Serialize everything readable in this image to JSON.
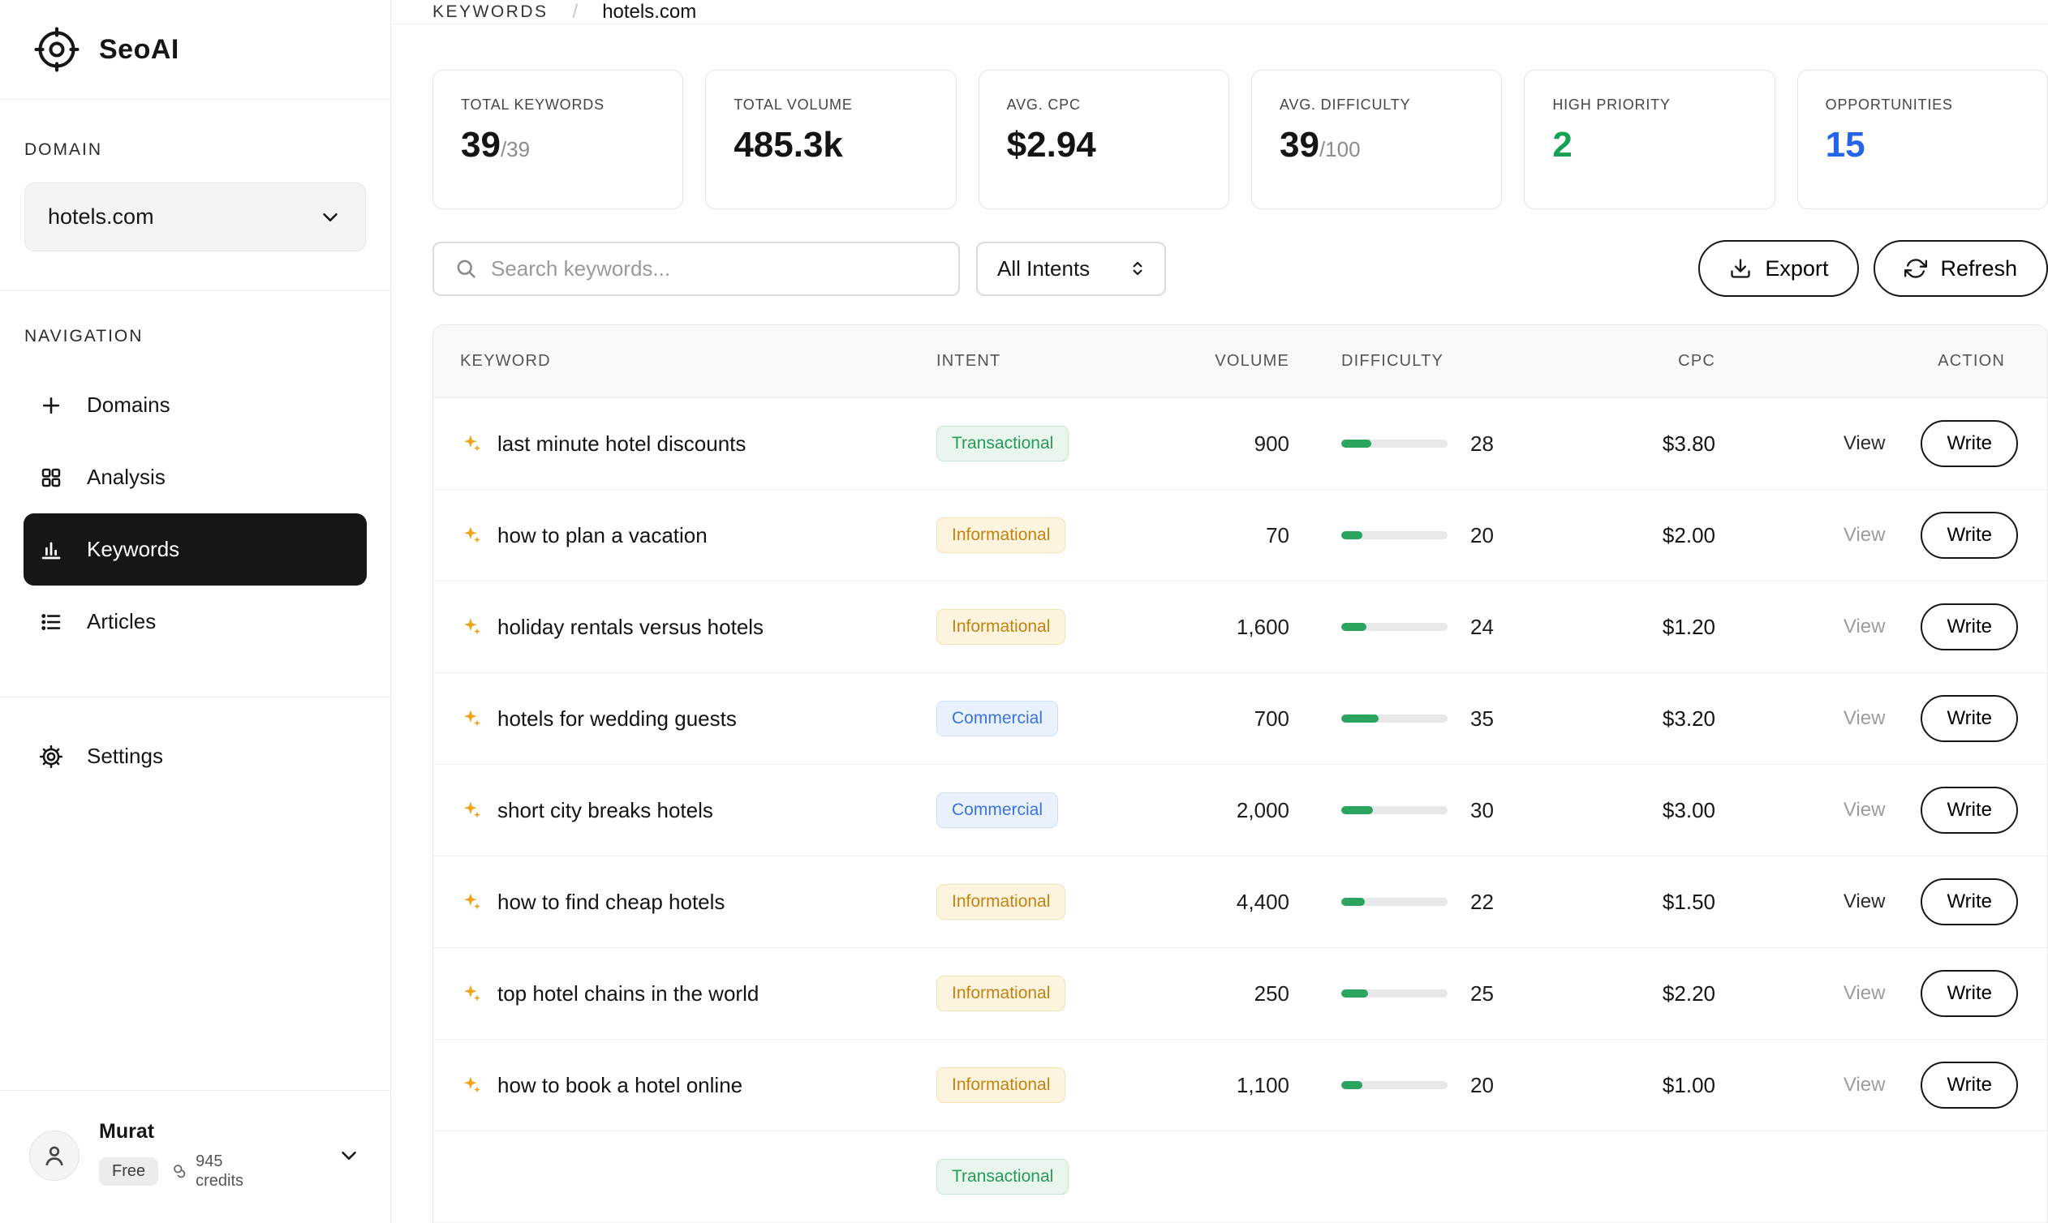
{
  "brand": {
    "name": "SeoAI"
  },
  "sidebar": {
    "domain_label": "DOMAIN",
    "domain_value": "hotels.com",
    "navigation_label": "NAVIGATION",
    "nav_items": [
      {
        "label": "Domains",
        "icon": "plus-icon",
        "active": false
      },
      {
        "label": "Analysis",
        "icon": "grid-icon",
        "active": false
      },
      {
        "label": "Keywords",
        "icon": "bar-chart-icon",
        "active": true
      },
      {
        "label": "Articles",
        "icon": "list-icon",
        "active": false
      }
    ],
    "settings_label": "Settings",
    "user": {
      "name": "Murat",
      "plan": "Free",
      "credits": "945 credits"
    }
  },
  "breadcrumb": {
    "section": "KEYWORDS",
    "separator": "/",
    "page": "hotels.com"
  },
  "stats": [
    {
      "label": "TOTAL KEYWORDS",
      "value": "39",
      "suffix": "/39"
    },
    {
      "label": "TOTAL VOLUME",
      "value": "485.3k"
    },
    {
      "label": "AVG. CPC",
      "value": "$2.94"
    },
    {
      "label": "AVG. DIFFICULTY",
      "value": "39",
      "suffix": "/100"
    },
    {
      "label": "HIGH PRIORITY",
      "value": "2",
      "color": "#15a254"
    },
    {
      "label": "OPPORTUNITIES",
      "value": "15",
      "color": "#2563eb"
    }
  ],
  "controls": {
    "search_placeholder": "Search keywords...",
    "intent_filter": "All Intents",
    "export_label": "Export",
    "refresh_label": "Refresh"
  },
  "table": {
    "headers": [
      "KEYWORD",
      "INTENT",
      "VOLUME",
      "DIFFICULTY",
      "CPC",
      "ACTION"
    ],
    "view_label": "View",
    "write_label": "Write",
    "intent_colors": {
      "Transactional": {
        "bg": "#e8f6ed",
        "text": "#279a58",
        "border": "#c4e8d1"
      },
      "Informational": {
        "bg": "#fdf4df",
        "text": "#c2830f",
        "border": "#f3e2b0"
      },
      "Commercial": {
        "bg": "#e9f1fd",
        "text": "#3b74e0",
        "border": "#cddff9"
      }
    },
    "rows": [
      {
        "keyword": "last minute hotel discounts",
        "intent": "Transactional",
        "volume": "900",
        "difficulty": 28,
        "cpc": "$3.80",
        "view_dark": true
      },
      {
        "keyword": "how to plan a vacation",
        "intent": "Informational",
        "volume": "70",
        "difficulty": 20,
        "cpc": "$2.00",
        "view_dark": false
      },
      {
        "keyword": "holiday rentals versus hotels",
        "intent": "Informational",
        "volume": "1,600",
        "difficulty": 24,
        "cpc": "$1.20",
        "view_dark": false
      },
      {
        "keyword": "hotels for wedding guests",
        "intent": "Commercial",
        "volume": "700",
        "difficulty": 35,
        "cpc": "$3.20",
        "view_dark": false
      },
      {
        "keyword": "short city breaks hotels",
        "intent": "Commercial",
        "volume": "2,000",
        "difficulty": 30,
        "cpc": "$3.00",
        "view_dark": false
      },
      {
        "keyword": "how to find cheap hotels",
        "intent": "Informational",
        "volume": "4,400",
        "difficulty": 22,
        "cpc": "$1.50",
        "view_dark": true
      },
      {
        "keyword": "top hotel chains in the world",
        "intent": "Informational",
        "volume": "250",
        "difficulty": 25,
        "cpc": "$2.20",
        "view_dark": false
      },
      {
        "keyword": "how to book a hotel online",
        "intent": "Informational",
        "volume": "1,100",
        "difficulty": 20,
        "cpc": "$1.00",
        "view_dark": false
      },
      {
        "keyword": "",
        "intent": "Transactional",
        "volume": "",
        "difficulty": null,
        "cpc": "",
        "view_dark": false,
        "partial": true
      }
    ]
  }
}
